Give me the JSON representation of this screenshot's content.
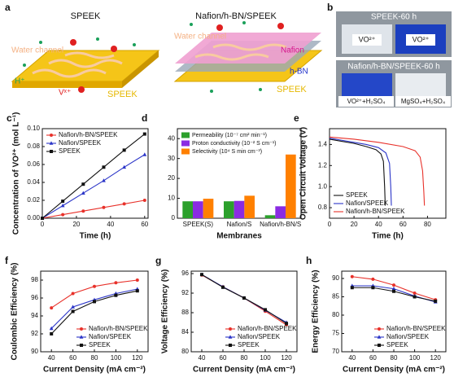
{
  "illustrations": [
    {
      "label": "a",
      "panels": [
        {
          "title": "SPEEK",
          "annotations": [
            "Water channel",
            "H⁺",
            "Vˣ⁺",
            "SPEEK"
          ]
        },
        {
          "title": "Nafion/h-BN/SPEEK",
          "annotations": [
            "Water channel",
            "Nafion",
            "h-BN",
            "SPEEK"
          ]
        }
      ]
    },
    {
      "label": "b",
      "photos": [
        {
          "title": "SPEEK-60 h",
          "annotations": [
            "VO²⁺",
            "VO²⁺"
          ]
        },
        {
          "title": "Nafion/h-BN/SPEEK-60 h",
          "annotations": [
            "VO²⁺+H₂SO₄",
            "MgSO₄+H₂SO₄"
          ]
        }
      ]
    }
  ],
  "chart_data": [
    {
      "type": "line",
      "label": "c",
      "x_label": "Time (h)",
      "y_label": "Concentration of VO²⁺ (mol L⁻¹)",
      "x": [
        0,
        12,
        24,
        36,
        48,
        60
      ],
      "xlim": [
        0,
        62
      ],
      "xticks": [
        0,
        20,
        40,
        60
      ],
      "ylim": [
        0,
        0.1
      ],
      "yticks": [
        {
          "value": 0,
          "label": "0.00"
        },
        {
          "value": 0.02,
          "label": "0.02"
        },
        {
          "value": 0.04,
          "label": "0.04"
        },
        {
          "value": 0.06,
          "label": "0.06"
        },
        {
          "value": 0.08,
          "label": "0.08"
        },
        {
          "value": 0.1,
          "label": "0.10"
        }
      ],
      "legend": "upper left",
      "markers": true,
      "series": [
        {
          "name": "Nafion/h-BN/SPEEK",
          "color": "#e8312a",
          "marker": "circle",
          "values": [
            0,
            0.004,
            0.008,
            0.012,
            0.016,
            0.02
          ]
        },
        {
          "name": "Nafion/SPEEK",
          "color": "#2b35c8",
          "marker": "triangle",
          "values": [
            0,
            0.014,
            0.028,
            0.042,
            0.057,
            0.071
          ]
        },
        {
          "name": "SPEEK",
          "color": "#111111",
          "marker": "square",
          "values": [
            0,
            0.019,
            0.038,
            0.057,
            0.076,
            0.094
          ]
        }
      ]
    },
    {
      "type": "bar",
      "label": "d",
      "x_label": "Membranes",
      "categories": [
        "SPEEK(S)",
        "Nafion/S",
        "Nafion/h-BN/S"
      ],
      "ylim": [
        0,
        45
      ],
      "yticks": [
        0,
        10,
        20,
        30,
        40
      ],
      "legend": "upper left",
      "series": [
        {
          "name": "Permeability (10⁻⁷ cm² min⁻¹)",
          "color": "#2ca02c",
          "values": [
            8.5,
            8.5,
            1.5
          ]
        },
        {
          "name": "Proton conductivity (10⁻² S cm⁻¹)",
          "color": "#8a2be2",
          "values": [
            8.5,
            8.7,
            6.0
          ]
        },
        {
          "name": "Selectivity (10⁴ S min cm⁻³)",
          "color": "#ff8000",
          "values": [
            9.8,
            11.3,
            32
          ]
        }
      ]
    },
    {
      "type": "line",
      "label": "e",
      "x_label": "Time (h)",
      "y_label": "Open Circuit Voltage (V)",
      "xlim": [
        0,
        95
      ],
      "xticks": [
        0,
        20,
        40,
        60,
        80
      ],
      "ylim": [
        0.7,
        1.55
      ],
      "yticks": [
        0.8,
        {
          "value": 1.0,
          "label": "1.0"
        },
        1.2,
        1.4
      ],
      "legend": "lower left",
      "markers": false,
      "series": [
        {
          "name": "SPEEK",
          "color": "#111111",
          "x": [
            0,
            10,
            20,
            30,
            38,
            42,
            44,
            45,
            45.5
          ],
          "values": [
            1.45,
            1.43,
            1.41,
            1.38,
            1.35,
            1.31,
            1.24,
            1.0,
            0.82
          ]
        },
        {
          "name": "Nafion/SPEEK",
          "color": "#2b35c8",
          "x": [
            0,
            10,
            20,
            30,
            40,
            46,
            49,
            50,
            50.5
          ],
          "values": [
            1.46,
            1.44,
            1.42,
            1.4,
            1.37,
            1.32,
            1.22,
            1.0,
            0.82
          ]
        },
        {
          "name": "Nafion/h-BN/SPEEK",
          "color": "#e8312a",
          "x": [
            0,
            20,
            40,
            60,
            70,
            74,
            76,
            77,
            77.5
          ],
          "values": [
            1.47,
            1.45,
            1.42,
            1.38,
            1.34,
            1.28,
            1.15,
            0.95,
            0.82
          ]
        }
      ]
    },
    {
      "type": "line",
      "label": "f",
      "x_label": "Current Density (mA cm⁻²)",
      "y_label": "Coulombic Efficiency (%)",
      "x": [
        40,
        60,
        80,
        100,
        120
      ],
      "xlim": [
        30,
        130
      ],
      "xticks": [
        40,
        60,
        80,
        100,
        120
      ],
      "ylim": [
        90,
        99
      ],
      "yticks": [
        90,
        92,
        94,
        96,
        98
      ],
      "legend": "lower right",
      "markers": true,
      "series": [
        {
          "name": "Nafion/h-BN/SPEEK",
          "color": "#e8312a",
          "marker": "circle",
          "values": [
            94.9,
            96.5,
            97.3,
            97.7,
            98.0
          ]
        },
        {
          "name": "Nafion/SPEEK",
          "color": "#2b35c8",
          "marker": "triangle",
          "values": [
            92.6,
            95.0,
            95.8,
            96.5,
            97.0
          ]
        },
        {
          "name": "SPEEK",
          "color": "#111111",
          "marker": "square",
          "values": [
            92.0,
            94.5,
            95.6,
            96.3,
            96.8
          ]
        }
      ]
    },
    {
      "type": "line",
      "label": "g",
      "x_label": "Current Density (mA cm⁻²)",
      "y_label": "Voltage Efficiency (%)",
      "x": [
        40,
        60,
        80,
        100,
        120
      ],
      "xlim": [
        30,
        130
      ],
      "xticks": [
        40,
        60,
        80,
        100,
        120
      ],
      "ylim": [
        80,
        96.5
      ],
      "yticks": [
        80,
        84,
        88,
        92,
        96
      ],
      "legend": "lower right",
      "markers": true,
      "series": [
        {
          "name": "Nafion/h-BN/SPEEK",
          "color": "#e8312a",
          "marker": "circle",
          "values": [
            95.7,
            93.3,
            91.0,
            88.3,
            85.5
          ]
        },
        {
          "name": "Nafion/SPEEK",
          "color": "#2b35c8",
          "marker": "triangle",
          "values": [
            95.8,
            93.3,
            91.0,
            88.5,
            86.0
          ]
        },
        {
          "name": "SPEEK",
          "color": "#111111",
          "marker": "square",
          "values": [
            95.8,
            93.2,
            91.0,
            88.6,
            85.8
          ]
        }
      ]
    },
    {
      "type": "line",
      "label": "h",
      "x_label": "Current Density (mA cm⁻²)",
      "y_label": "Energy Efficiency (%)",
      "x": [
        40,
        60,
        80,
        100,
        120
      ],
      "xlim": [
        30,
        130
      ],
      "xticks": [
        40,
        60,
        80,
        100,
        120
      ],
      "ylim": [
        70,
        92
      ],
      "yticks": [
        70,
        75,
        80,
        85,
        90
      ],
      "legend": "lower right",
      "markers": true,
      "series": [
        {
          "name": "Nafion/h-BN/SPEEK",
          "color": "#e8312a",
          "marker": "circle",
          "values": [
            90.5,
            89.8,
            88.2,
            86.0,
            84.2
          ]
        },
        {
          "name": "Nafion/SPEEK",
          "color": "#2b35c8",
          "marker": "triangle",
          "values": [
            88.0,
            88.0,
            87.2,
            85.2,
            83.6
          ]
        },
        {
          "name": "SPEEK",
          "color": "#111111",
          "marker": "square",
          "values": [
            87.5,
            87.5,
            86.5,
            85.0,
            83.8
          ]
        }
      ]
    }
  ]
}
